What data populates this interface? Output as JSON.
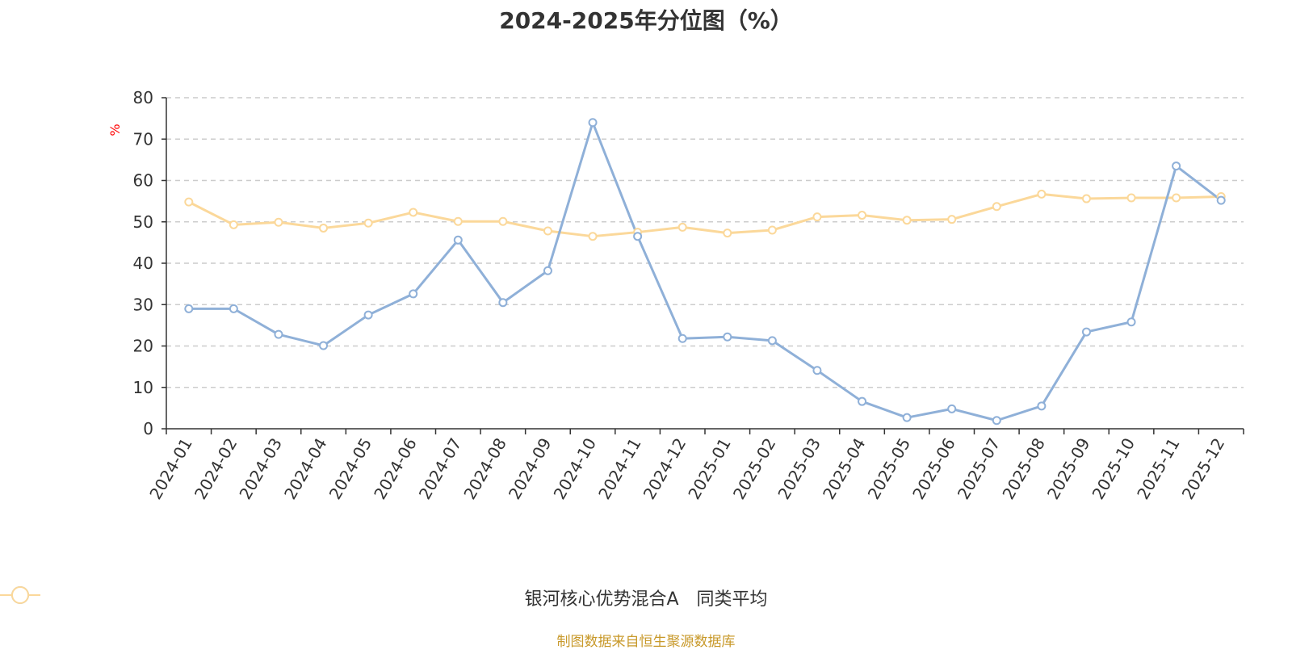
{
  "chart_data": {
    "type": "line",
    "title": "2024-2025年分位图（%）",
    "unit_label": "%",
    "xlabel": "",
    "ylabel": "%",
    "ylim": [
      0,
      80
    ],
    "yticks": [
      0,
      10,
      20,
      30,
      40,
      50,
      60,
      70,
      80
    ],
    "grid": true,
    "legend_position": "bottom",
    "categories": [
      "2024-01",
      "2024-02",
      "2024-03",
      "2024-04",
      "2024-05",
      "2024-06",
      "2024-07",
      "2024-08",
      "2024-09",
      "2024-10",
      "2024-11",
      "2024-12",
      "2025-01",
      "2025-02",
      "2025-03",
      "2025-04",
      "2025-05",
      "2025-06",
      "2025-07",
      "2025-08",
      "2025-09",
      "2025-10",
      "2025-11",
      "2025-12"
    ],
    "series": [
      {
        "name": "银河核心优势混合A",
        "color": "#8fb0d8",
        "values": [
          29.0,
          29.0,
          22.8,
          20.1,
          27.5,
          32.6,
          45.6,
          30.5,
          38.2,
          74.0,
          46.5,
          21.8,
          22.2,
          21.3,
          14.1,
          6.6,
          2.7,
          4.8,
          2.0,
          5.5,
          23.4,
          25.8,
          63.5,
          55.2
        ]
      },
      {
        "name": "同类平均",
        "color": "#fbd89a",
        "values": [
          54.8,
          49.3,
          49.9,
          48.5,
          49.7,
          52.3,
          50.1,
          50.1,
          47.8,
          46.5,
          47.5,
          48.7,
          47.3,
          48.0,
          51.2,
          51.6,
          50.4,
          50.6,
          53.7,
          56.7,
          55.6,
          55.8,
          55.8,
          56.1
        ]
      }
    ]
  },
  "source": {
    "text": "制图数据来自恒生聚源数据库",
    "color": "#c8992a"
  }
}
